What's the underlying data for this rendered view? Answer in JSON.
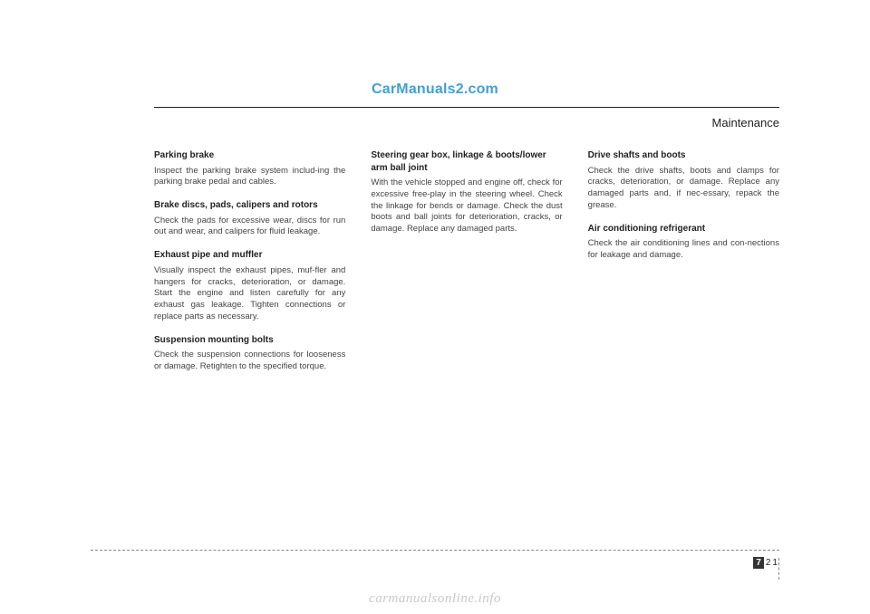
{
  "watermark_top": "CarManuals2.com",
  "watermark_bottom": "carmanualsonline.info",
  "header_title": "Maintenance",
  "page_chapter": "7",
  "page_number": "21",
  "col1": {
    "s1": {
      "title": "Parking brake",
      "body": "Inspect the parking brake system includ-ing the parking brake pedal and cables."
    },
    "s2": {
      "title": "Brake discs, pads, calipers and rotors",
      "body": "Check the pads for excessive wear, discs for run out and wear, and calipers for fluid leakage."
    },
    "s3": {
      "title": "Exhaust pipe and muffler",
      "body": "Visually inspect the exhaust pipes, muf-fler and hangers for cracks, deterioration, or damage. Start the engine and listen carefully for any exhaust gas leakage. Tighten connections or replace parts as necessary."
    },
    "s4": {
      "title": "Suspension mounting bolts",
      "body": "Check the suspension connections for looseness or damage. Retighten to the specified torque."
    }
  },
  "col2": {
    "s1": {
      "title": "Steering gear box, linkage & boots/lower arm ball joint",
      "body": "With the vehicle stopped and engine off, check for excessive free-play in the steering wheel.\nCheck the linkage for bends or damage. Check the dust boots and ball joints for deterioration, cracks, or damage. Replace any damaged parts."
    }
  },
  "col3": {
    "s1": {
      "title": "Drive shafts and boots",
      "body": "Check the drive shafts, boots and clamps for cracks, deterioration, or damage. Replace any damaged parts and, if nec-essary, repack the grease."
    },
    "s2": {
      "title": "Air conditioning refrigerant",
      "body": "Check the air conditioning lines and con-nections for leakage and damage."
    }
  }
}
